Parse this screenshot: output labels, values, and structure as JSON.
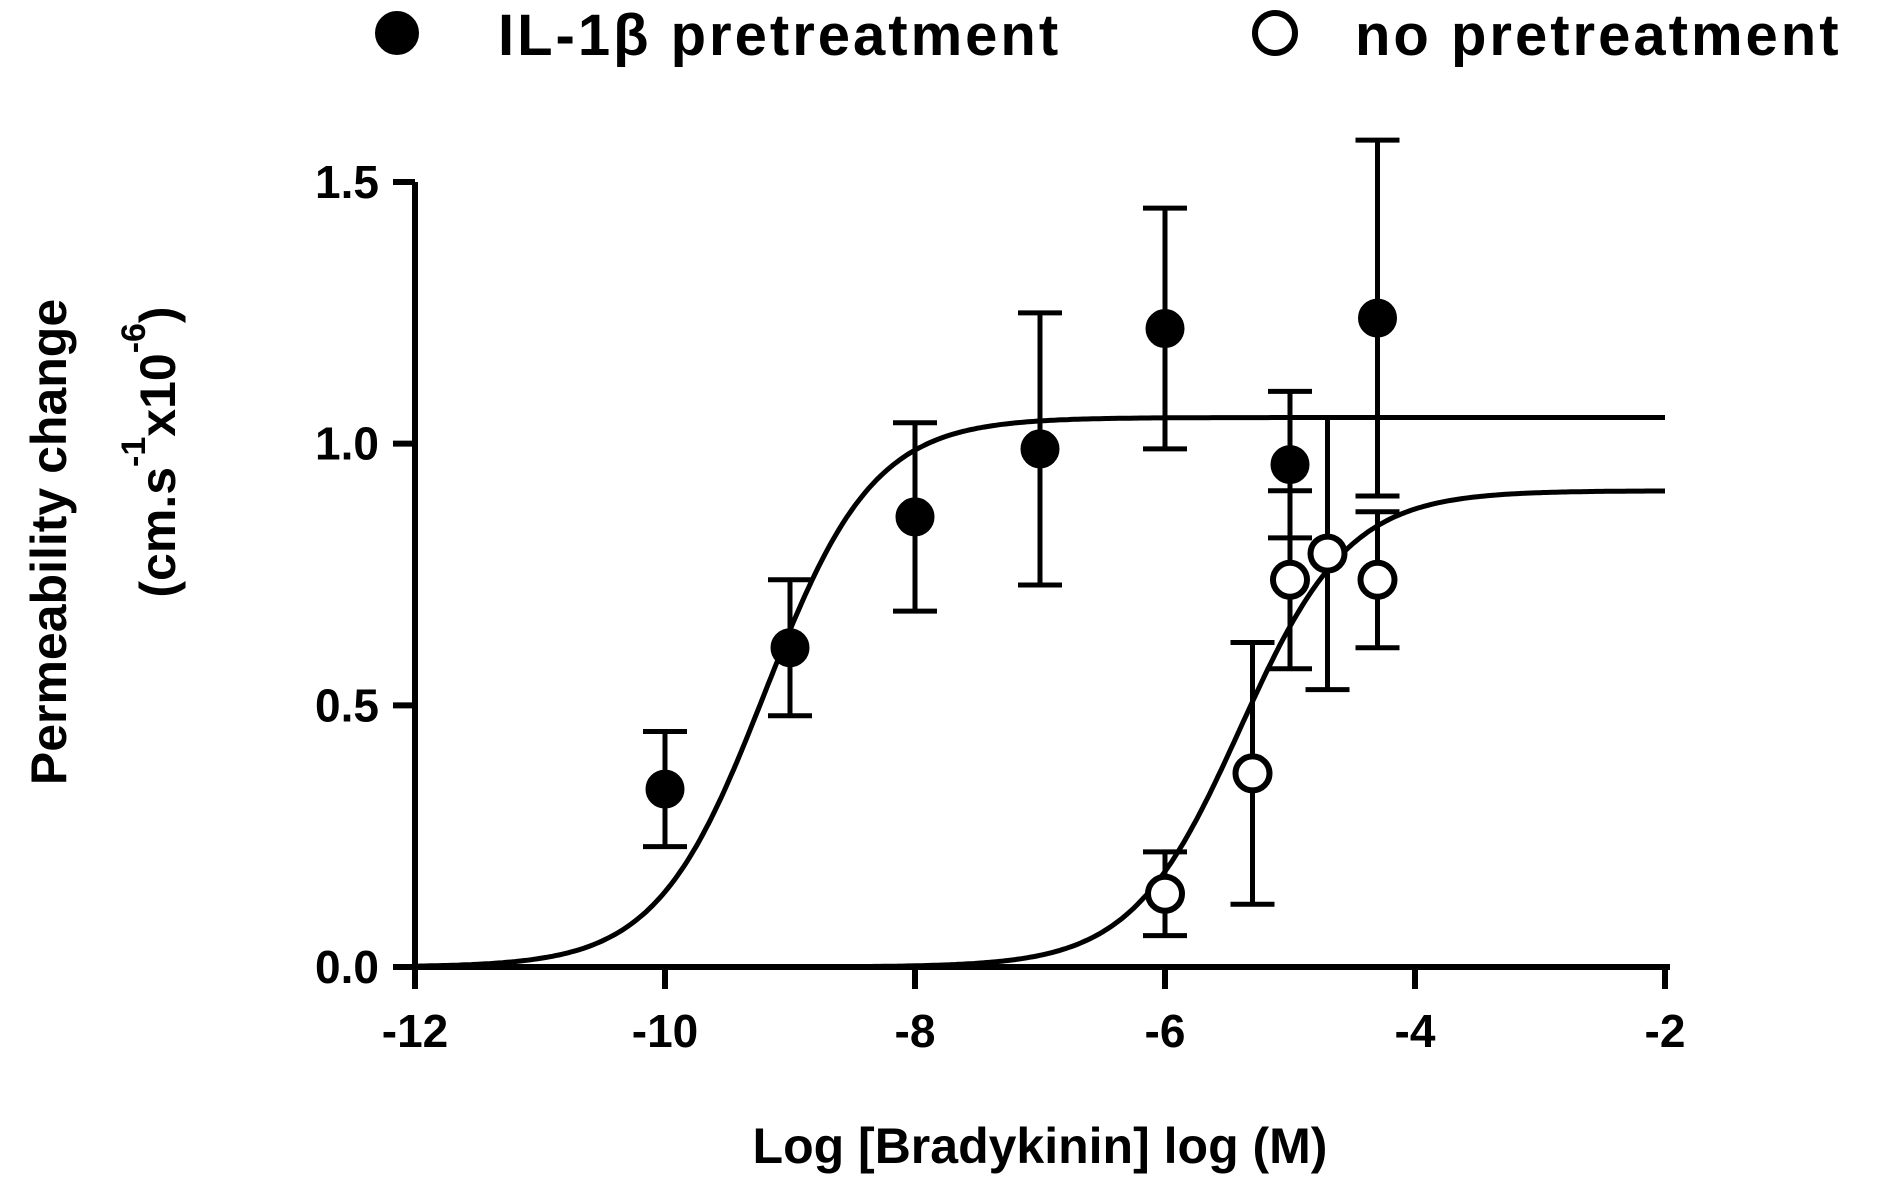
{
  "chart_data": {
    "type": "scatter",
    "xlabel": "Log [Bradykinin] log (M)",
    "ylabel_line1": "Permeability change",
    "ylabel_line2_prefix": "(cm.s",
    "ylabel_exp1": "-1",
    "ylabel_mid": "x10",
    "ylabel_exp2": "-6",
    "ylabel_suffix": ")",
    "xlim": [
      -12,
      -2
    ],
    "ylim": [
      0,
      1.5
    ],
    "x_ticks": [
      -12,
      -10,
      -8,
      -6,
      -4,
      -2
    ],
    "x_tick_labels": [
      "-12",
      "-10",
      "-8",
      "-6",
      "-4",
      "-2"
    ],
    "y_ticks": [
      0,
      0.5,
      1.0,
      1.5
    ],
    "y_tick_labels": [
      "0.0",
      "0.5",
      "1.0",
      "1.5"
    ],
    "legend_position": "top",
    "series": [
      {
        "name": "IL-1β pretreatment",
        "marker": "filled-circle",
        "color": "#000000",
        "points": [
          {
            "x": -10,
            "y": 0.34,
            "err": 0.11
          },
          {
            "x": -9,
            "y": 0.61,
            "err": 0.13
          },
          {
            "x": -8,
            "y": 0.86,
            "err": 0.18
          },
          {
            "x": -7,
            "y": 0.99,
            "err": 0.26
          },
          {
            "x": -6,
            "y": 1.22,
            "err": 0.23
          },
          {
            "x": -5,
            "y": 0.96,
            "err": 0.14
          },
          {
            "x": -4.3,
            "y": 1.24,
            "err": 0.34
          }
        ],
        "fit": {
          "bottom": 0.0,
          "top": 1.05,
          "logEC50": -9.2,
          "hill": 1.0
        }
      },
      {
        "name": "no pretreatment",
        "marker": "open-circle",
        "color": "#000000",
        "points": [
          {
            "x": -6,
            "y": 0.14,
            "err": 0.08
          },
          {
            "x": -5.3,
            "y": 0.37,
            "err": 0.25
          },
          {
            "x": -5,
            "y": 0.74,
            "err": 0.17
          },
          {
            "x": -4.7,
            "y": 0.79,
            "err": 0.26
          },
          {
            "x": -4.3,
            "y": 0.74,
            "err": 0.13
          }
        ],
        "fit": {
          "bottom": 0.0,
          "top": 0.91,
          "logEC50": -5.4,
          "hill": 1.0
        }
      }
    ]
  }
}
